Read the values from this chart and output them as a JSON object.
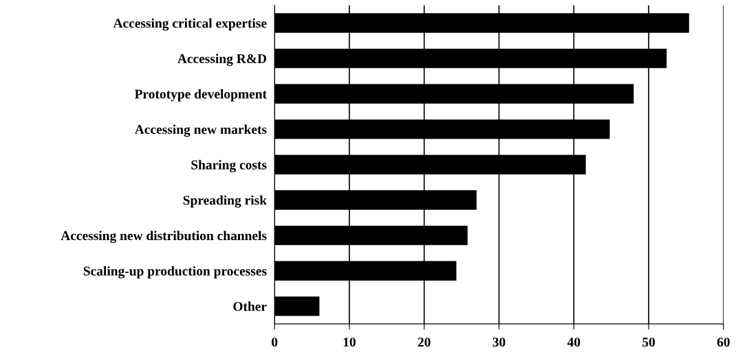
{
  "chart_data": {
    "type": "bar",
    "orientation": "horizontal",
    "categories": [
      "Accessing critical expertise",
      "Accessing R&D",
      "Prototype development",
      "Accessing new markets",
      "Sharing costs",
      "Spreading risk",
      "Accessing new distribution channels",
      "Scaling-up production processes",
      "Other"
    ],
    "values": [
      55.4,
      52.4,
      48.0,
      44.8,
      41.6,
      27.0,
      25.8,
      24.3,
      6.0
    ],
    "color": "#000000",
    "xlim": [
      0,
      60
    ],
    "xticks": [
      0,
      10,
      20,
      30,
      40,
      50,
      60
    ],
    "grid": "x",
    "legend": false
  }
}
